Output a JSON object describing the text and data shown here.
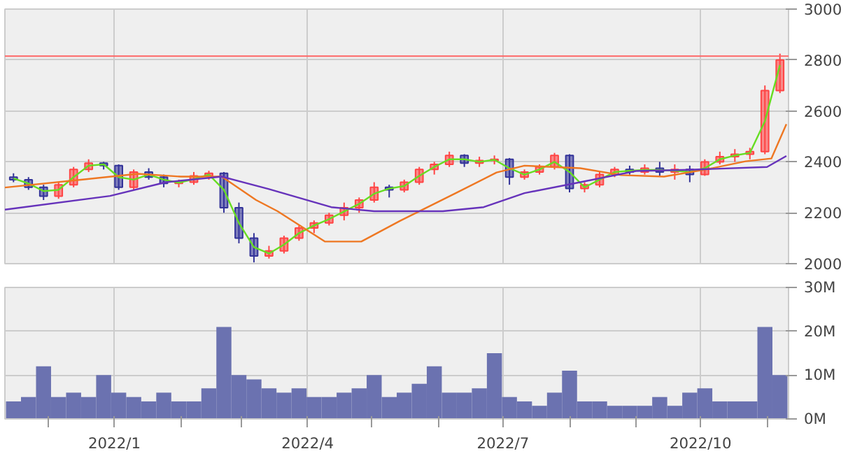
{
  "chart_data": [
    {
      "type": "candlestick",
      "tick_labels": "y",
      "grid": true,
      "x": [
        "2021-11-15",
        "2021-11-22",
        "2021-11-29",
        "2021-12-06",
        "2021-12-13",
        "2021-12-20",
        "2021-12-27",
        "2022-01-03",
        "2022-01-10",
        "2022-01-17",
        "2022-01-24",
        "2022-01-31",
        "2022-02-07",
        "2022-02-14",
        "2022-02-21",
        "2022-02-28",
        "2022-03-07",
        "2022-03-14",
        "2022-03-21",
        "2022-03-28",
        "2022-04-04",
        "2022-04-11",
        "2022-04-18",
        "2022-04-25",
        "2022-05-02",
        "2022-05-09",
        "2022-05-16",
        "2022-05-23",
        "2022-05-30",
        "2022-06-06",
        "2022-06-13",
        "2022-06-20",
        "2022-06-27",
        "2022-07-04",
        "2022-07-11",
        "2022-07-18",
        "2022-07-25",
        "2022-08-01",
        "2022-08-08",
        "2022-08-15",
        "2022-08-22",
        "2022-08-29",
        "2022-09-05",
        "2022-09-12",
        "2022-09-19",
        "2022-09-26",
        "2022-10-03",
        "2022-10-10",
        "2022-10-17",
        "2022-10-24",
        "2022-10-31",
        "2022-11-07"
      ],
      "ohlc": [
        [
          2340,
          2355,
          2320,
          2330
        ],
        [
          2330,
          2340,
          2290,
          2300
        ],
        [
          2300,
          2310,
          2250,
          2265
        ],
        [
          2265,
          2320,
          2255,
          2310
        ],
        [
          2310,
          2380,
          2300,
          2370
        ],
        [
          2370,
          2410,
          2360,
          2395
        ],
        [
          2395,
          2400,
          2370,
          2385
        ],
        [
          2385,
          2390,
          2290,
          2300
        ],
        [
          2300,
          2370,
          2290,
          2360
        ],
        [
          2360,
          2375,
          2330,
          2340
        ],
        [
          2340,
          2350,
          2300,
          2315
        ],
        [
          2315,
          2330,
          2300,
          2320
        ],
        [
          2320,
          2360,
          2310,
          2345
        ],
        [
          2345,
          2365,
          2330,
          2355
        ],
        [
          2355,
          2360,
          2200,
          2220
        ],
        [
          2220,
          2240,
          2080,
          2100
        ],
        [
          2100,
          2120,
          2005,
          2030
        ],
        [
          2030,
          2070,
          2020,
          2050
        ],
        [
          2050,
          2110,
          2040,
          2100
        ],
        [
          2100,
          2150,
          2090,
          2140
        ],
        [
          2140,
          2170,
          2120,
          2160
        ],
        [
          2160,
          2200,
          2150,
          2190
        ],
        [
          2190,
          2240,
          2170,
          2220
        ],
        [
          2220,
          2260,
          2200,
          2250
        ],
        [
          2250,
          2320,
          2240,
          2300
        ],
        [
          2300,
          2310,
          2260,
          2290
        ],
        [
          2290,
          2330,
          2280,
          2320
        ],
        [
          2320,
          2380,
          2310,
          2370
        ],
        [
          2370,
          2400,
          2350,
          2390
        ],
        [
          2390,
          2440,
          2380,
          2425
        ],
        [
          2425,
          2430,
          2380,
          2395
        ],
        [
          2395,
          2420,
          2380,
          2405
        ],
        [
          2405,
          2425,
          2390,
          2410
        ],
        [
          2410,
          2415,
          2310,
          2340
        ],
        [
          2340,
          2370,
          2330,
          2360
        ],
        [
          2360,
          2390,
          2350,
          2380
        ],
        [
          2380,
          2435,
          2370,
          2425
        ],
        [
          2425,
          2430,
          2280,
          2295
        ],
        [
          2295,
          2320,
          2280,
          2310
        ],
        [
          2310,
          2360,
          2300,
          2350
        ],
        [
          2350,
          2380,
          2340,
          2370
        ],
        [
          2370,
          2385,
          2350,
          2360
        ],
        [
          2360,
          2390,
          2350,
          2375
        ],
        [
          2375,
          2400,
          2345,
          2360
        ],
        [
          2360,
          2390,
          2330,
          2370
        ],
        [
          2370,
          2385,
          2320,
          2350
        ],
        [
          2350,
          2410,
          2345,
          2400
        ],
        [
          2400,
          2440,
          2390,
          2420
        ],
        [
          2420,
          2450,
          2400,
          2430
        ],
        [
          2430,
          2455,
          2410,
          2440
        ],
        [
          2440,
          2700,
          2430,
          2680
        ],
        [
          2680,
          2825,
          2670,
          2800
        ]
      ],
      "colors": [
        "#333399",
        "#333399",
        "#333399",
        "#ff4444",
        "#ff4444",
        "#ff4444",
        "#333399",
        "#333399",
        "#ff4444",
        "#333399",
        "#333399",
        "#ff4444",
        "#ff4444",
        "#ff4444",
        "#333399",
        "#333399",
        "#333399",
        "#ff4444",
        "#ff4444",
        "#ff4444",
        "#ff4444",
        "#ff4444",
        "#ff4444",
        "#ff4444",
        "#ff4444",
        "#333399",
        "#ff4444",
        "#ff4444",
        "#ff4444",
        "#ff4444",
        "#333399",
        "#ff4444",
        "#ff4444",
        "#333399",
        "#ff4444",
        "#ff4444",
        "#ff4444",
        "#333399",
        "#ff4444",
        "#ff4444",
        "#ff4444",
        "#333399",
        "#ff4444",
        "#333399",
        "#ff4444",
        "#333399",
        "#ff4444",
        "#ff4444",
        "#ff4444",
        "#ff4444",
        "#ff4444",
        "#ff4444"
      ],
      "series": [
        {
          "type": "line",
          "color": "#66dd22",
          "x": [
            "2021-11-15",
            "2021-11-22",
            "2021-11-29",
            "2021-12-06",
            "2021-12-13",
            "2021-12-20",
            "2021-12-27",
            "2022-01-03",
            "2022-01-10",
            "2022-01-17",
            "2022-01-24",
            "2022-01-31",
            "2022-02-07",
            "2022-02-14",
            "2022-02-21",
            "2022-02-28",
            "2022-03-07",
            "2022-03-14",
            "2022-03-21",
            "2022-03-28",
            "2022-04-04",
            "2022-04-11",
            "2022-04-18",
            "2022-04-25",
            "2022-05-02",
            "2022-05-09",
            "2022-05-16",
            "2022-05-23",
            "2022-05-30",
            "2022-06-06",
            "2022-06-13",
            "2022-06-20",
            "2022-06-27",
            "2022-07-04",
            "2022-07-11",
            "2022-07-18",
            "2022-07-25",
            "2022-08-01",
            "2022-08-08",
            "2022-08-15",
            "2022-08-22",
            "2022-08-29",
            "2022-09-05",
            "2022-09-12",
            "2022-09-19",
            "2022-09-26",
            "2022-10-03",
            "2022-10-10",
            "2022-10-17",
            "2022-10-24",
            "2022-10-31",
            "2022-11-07"
          ],
          "values": [
            2335,
            2315,
            2285,
            2290,
            2340,
            2385,
            2390,
            2340,
            2330,
            2350,
            2330,
            2318,
            2332,
            2350,
            2290,
            2160,
            2065,
            2040,
            2075,
            2120,
            2150,
            2175,
            2205,
            2235,
            2275,
            2295,
            2305,
            2345,
            2380,
            2410,
            2410,
            2400,
            2408,
            2375,
            2350,
            2370,
            2400,
            2360,
            2300,
            2330,
            2360,
            2365,
            2368,
            2368,
            2365,
            2360,
            2375,
            2410,
            2425,
            2435,
            2560,
            2780
          ]
        },
        {
          "type": "line",
          "color": "#ee7722",
          "x": [
            "2021-11-11",
            "2021-12-18",
            "2022-01-12",
            "2022-02-01",
            "2022-02-20",
            "2022-03-08",
            "2022-03-18",
            "2022-04-09",
            "2022-04-26",
            "2022-05-14",
            "2022-06-09",
            "2022-06-28",
            "2022-07-11",
            "2022-08-06",
            "2022-08-25",
            "2022-09-14",
            "2022-10-03",
            "2022-10-22",
            "2022-11-03",
            "2022-11-10"
          ],
          "values": [
            2299,
            2331,
            2353,
            2342,
            2342,
            2250,
            2206,
            2087,
            2087,
            2168,
            2277,
            2358,
            2385,
            2375,
            2348,
            2342,
            2369,
            2402,
            2413,
            2548
          ]
        },
        {
          "type": "line",
          "color": "#6633bb",
          "x": [
            "2021-11-11",
            "2021-12-30",
            "2022-01-25",
            "2022-02-20",
            "2022-03-14",
            "2022-04-12",
            "2022-05-02",
            "2022-06-03",
            "2022-06-22",
            "2022-07-11",
            "2022-08-06",
            "2022-09-01",
            "2022-09-26",
            "2022-11-01",
            "2022-11-10"
          ],
          "values": [
            2212,
            2266,
            2320,
            2342,
            2293,
            2222,
            2206,
            2206,
            2222,
            2277,
            2320,
            2364,
            2369,
            2380,
            2423
          ]
        }
      ],
      "ref_lines": [
        {
          "axis": "y",
          "value": 2815,
          "color": "#ff6666"
        }
      ],
      "xlim": [
        "2021-11-11",
        "2022-11-11"
      ],
      "xticks": [
        {
          "value": "2022-01-01",
          "label": null
        },
        {
          "value": "2022-04-01",
          "label": null
        },
        {
          "value": "2022-07-01",
          "label": null
        },
        {
          "value": "2022-10-01",
          "label": null
        }
      ],
      "ylim": [
        2000,
        3000
      ],
      "yticks": [
        2000,
        2200,
        2400,
        2600,
        2800,
        3000
      ]
    },
    {
      "type": "bar",
      "grid": true,
      "color": "#6b72b0",
      "x": [
        "2021-11-15",
        "2021-11-22",
        "2021-11-29",
        "2021-12-06",
        "2021-12-13",
        "2021-12-20",
        "2021-12-27",
        "2022-01-03",
        "2022-01-10",
        "2022-01-17",
        "2022-01-24",
        "2022-01-31",
        "2022-02-07",
        "2022-02-14",
        "2022-02-21",
        "2022-02-28",
        "2022-03-07",
        "2022-03-14",
        "2022-03-21",
        "2022-03-28",
        "2022-04-04",
        "2022-04-11",
        "2022-04-18",
        "2022-04-25",
        "2022-05-02",
        "2022-05-09",
        "2022-05-16",
        "2022-05-23",
        "2022-05-30",
        "2022-06-06",
        "2022-06-13",
        "2022-06-20",
        "2022-06-27",
        "2022-07-04",
        "2022-07-11",
        "2022-07-18",
        "2022-07-25",
        "2022-08-01",
        "2022-08-08",
        "2022-08-15",
        "2022-08-22",
        "2022-08-29",
        "2022-09-05",
        "2022-09-12",
        "2022-09-19",
        "2022-09-26",
        "2022-10-03",
        "2022-10-10",
        "2022-10-17",
        "2022-10-24",
        "2022-10-31",
        "2022-11-07"
      ],
      "values": [
        4,
        5,
        12,
        5,
        6,
        5,
        10,
        6,
        5,
        4,
        6,
        4,
        4,
        7,
        21,
        10,
        9,
        7,
        6,
        7,
        5,
        5,
        6,
        7,
        10,
        5,
        6,
        8,
        12,
        6,
        6,
        7,
        15,
        5,
        4,
        3,
        6,
        11,
        4,
        4,
        3,
        3,
        3,
        5,
        3,
        6,
        7,
        4,
        4,
        4,
        21,
        10
      ],
      "xlim": [
        "2021-11-11",
        "2022-11-11"
      ],
      "xticks": [
        {
          "value": "2021-12-01",
          "label": null
        },
        {
          "value": "2022-01-01",
          "label": "2022/1"
        },
        {
          "value": "2022-02-01",
          "label": null
        },
        {
          "value": "2022-03-01",
          "label": null
        },
        {
          "value": "2022-04-01",
          "label": "2022/4"
        },
        {
          "value": "2022-05-01",
          "label": null
        },
        {
          "value": "2022-06-01",
          "label": null
        },
        {
          "value": "2022-07-01",
          "label": "2022/7"
        },
        {
          "value": "2022-08-01",
          "label": null
        },
        {
          "value": "2022-09-01",
          "label": null
        },
        {
          "value": "2022-10-01",
          "label": "2022/10"
        },
        {
          "value": "2022-11-01",
          "label": null
        }
      ],
      "ylim": [
        0,
        30
      ],
      "yticks": [
        {
          "value": 0,
          "label": "0M"
        },
        {
          "value": 10,
          "label": "10M"
        },
        {
          "value": 20,
          "label": "20M"
        },
        {
          "value": 30,
          "label": "30M"
        }
      ]
    }
  ]
}
